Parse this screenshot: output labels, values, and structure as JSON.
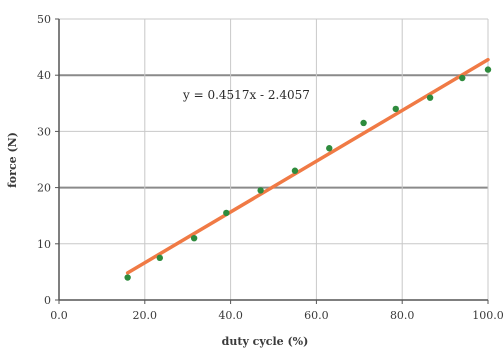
{
  "chart_data": {
    "type": "scatter",
    "title": "",
    "xlabel": "duty cycle (%)",
    "ylabel": "force (N)",
    "xlim": [
      0,
      100
    ],
    "ylim": [
      0,
      50
    ],
    "xticks": [
      "0.0",
      "20.0",
      "40.0",
      "60.0",
      "80.0",
      "100.0"
    ],
    "yticks": [
      "0",
      "10",
      "20",
      "30",
      "40",
      "50"
    ],
    "grid": true,
    "legend": "none",
    "series": [
      {
        "points": [
          {
            "x": 16,
            "y": 4.0
          },
          {
            "x": 23.5,
            "y": 7.5
          },
          {
            "x": 31.5,
            "y": 11.0
          },
          {
            "x": 39,
            "y": 15.5
          },
          {
            "x": 47,
            "y": 19.5
          },
          {
            "x": 55,
            "y": 23.0
          },
          {
            "x": 63,
            "y": 27.0
          },
          {
            "x": 71,
            "y": 31.5
          },
          {
            "x": 78.5,
            "y": 34.0
          },
          {
            "x": 86.5,
            "y": 36.0
          },
          {
            "x": 94,
            "y": 39.5
          },
          {
            "x": 100,
            "y": 41.0
          }
        ],
        "color": "#2e8b3d"
      }
    ],
    "trendline": {
      "slope": 0.4517,
      "intercept": -2.4057,
      "x_range": [
        16,
        100
      ],
      "equation_text": "y = 0.4517x - 2.4057",
      "color": "#f07a45"
    },
    "colors": {
      "grid_major": "#8a8a8a",
      "grid_minor": "#c8c8c8",
      "axis": "#555555"
    }
  }
}
